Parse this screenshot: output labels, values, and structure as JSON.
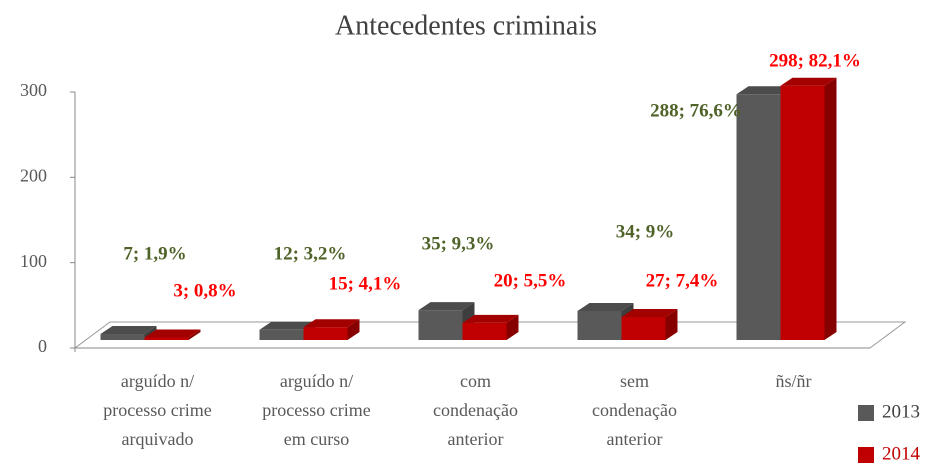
{
  "chart_data": {
    "type": "bar3d",
    "title": "Antecedentes criminais",
    "categories": [
      "arguído n/\nprocesso crime\narquivado",
      "arguído n/\nprocesso crime\nem curso",
      "com\ncondenação\nanterior",
      "sem\ncondenação\nanterior",
      "ñs/ñr"
    ],
    "series": [
      {
        "name": "2013",
        "color": "#595959",
        "label_color": "#4f6228",
        "values": [
          7,
          12,
          35,
          34,
          288
        ],
        "value_labels": [
          "7; 1,9%",
          "12; 3,2%",
          "35; 9,3%",
          "34; 9%",
          "288; 76,6%"
        ]
      },
      {
        "name": "2014",
        "color": "#c00000",
        "label_color": "#ff0000",
        "values": [
          3,
          15,
          20,
          27,
          298
        ],
        "value_labels": [
          "3; 0,8%",
          "15; 4,1%",
          "20; 5,5%",
          "27; 7,4%",
          "298; 82,1%"
        ]
      }
    ],
    "ylim": [
      0,
      300
    ],
    "yticks": [
      0,
      100,
      200,
      300
    ],
    "legend": "bottom-right"
  }
}
